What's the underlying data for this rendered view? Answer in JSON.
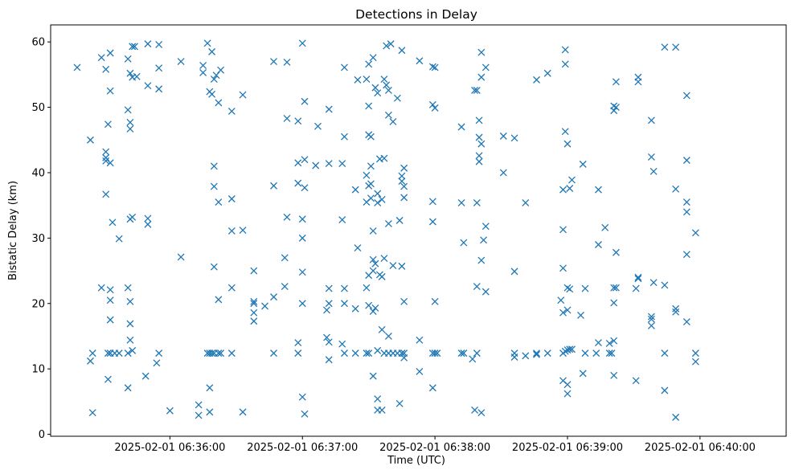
{
  "chart_data": {
    "type": "scatter",
    "title": "Detections in Delay",
    "xlabel": "Time (UTC)",
    "ylabel": "Bistatic Delay (km)",
    "x_unit": "time",
    "x_range": [
      "2025-02-01 06:35:06",
      "2025-02-01 06:40:39"
    ],
    "ylim": [
      -0.3,
      62.6
    ],
    "x_ticks": [
      "2025-02-01 06:36:00",
      "2025-02-01 06:37:00",
      "2025-02-01 06:38:00",
      "2025-02-01 06:39:00",
      "2025-02-01 06:40:00"
    ],
    "y_ticks": [
      0,
      10,
      20,
      30,
      40,
      50,
      60
    ],
    "marker": "x",
    "marker_color": "#1f77b4",
    "grid": false,
    "legend": "none",
    "points": [
      [
        "06:35:18",
        56.1
      ],
      [
        "06:35:24",
        45.0
      ],
      [
        "06:35:24",
        11.2
      ],
      [
        "06:35:25",
        12.4
      ],
      [
        "06:35:25",
        3.3
      ],
      [
        "06:35:29",
        57.6
      ],
      [
        "06:35:29",
        22.4
      ],
      [
        "06:35:31",
        55.8
      ],
      [
        "06:35:31",
        42.3
      ],
      [
        "06:35:31",
        43.2
      ],
      [
        "06:35:31",
        41.8
      ],
      [
        "06:35:31",
        36.7
      ],
      [
        "06:35:32",
        47.4
      ],
      [
        "06:35:32",
        12.4
      ],
      [
        "06:35:32",
        8.4
      ],
      [
        "06:35:33",
        58.3
      ],
      [
        "06:35:33",
        52.5
      ],
      [
        "06:35:33",
        41.5
      ],
      [
        "06:35:33",
        22.1
      ],
      [
        "06:35:33",
        20.5
      ],
      [
        "06:35:33",
        17.5
      ],
      [
        "06:35:33",
        12.4
      ],
      [
        "06:35:34",
        32.4
      ],
      [
        "06:35:35",
        12.4
      ],
      [
        "06:35:37",
        12.4
      ],
      [
        "06:35:37",
        29.9
      ],
      [
        "06:35:41",
        57.4
      ],
      [
        "06:35:41",
        49.6
      ],
      [
        "06:35:41",
        22.4
      ],
      [
        "06:35:41",
        12.4
      ],
      [
        "06:35:41",
        7.1
      ],
      [
        "06:35:42",
        55.2
      ],
      [
        "06:35:42",
        47.7
      ],
      [
        "06:35:42",
        46.7
      ],
      [
        "06:35:42",
        32.9
      ],
      [
        "06:35:42",
        20.3
      ],
      [
        "06:35:42",
        16.9
      ],
      [
        "06:35:42",
        14.4
      ],
      [
        "06:35:43",
        59.3
      ],
      [
        "06:35:43",
        54.6
      ],
      [
        "06:35:43",
        33.2
      ],
      [
        "06:35:43",
        12.8
      ],
      [
        "06:35:44",
        59.3
      ],
      [
        "06:35:45",
        54.7
      ],
      [
        "06:35:50",
        59.7
      ],
      [
        "06:35:50",
        53.3
      ],
      [
        "06:35:50",
        33.0
      ],
      [
        "06:35:50",
        32.1
      ],
      [
        "06:35:49",
        8.9
      ],
      [
        "06:35:55",
        59.6
      ],
      [
        "06:35:55",
        56.0
      ],
      [
        "06:35:55",
        52.8
      ],
      [
        "06:35:55",
        12.4
      ],
      [
        "06:35:54",
        10.9
      ],
      [
        "06:36:00",
        3.6
      ],
      [
        "06:36:05",
        57.0
      ],
      [
        "06:36:05",
        27.1
      ],
      [
        "06:36:13",
        4.5
      ],
      [
        "06:36:13",
        2.9
      ],
      [
        "06:36:15",
        56.4
      ],
      [
        "06:36:15",
        55.3
      ],
      [
        "06:36:17",
        59.8
      ],
      [
        "06:36:17",
        12.4
      ],
      [
        "06:36:18",
        52.4
      ],
      [
        "06:36:18",
        12.4
      ],
      [
        "06:36:18",
        7.1
      ],
      [
        "06:36:18",
        3.4
      ],
      [
        "06:36:19",
        58.5
      ],
      [
        "06:36:19",
        52.0
      ],
      [
        "06:36:19",
        12.4
      ],
      [
        "06:36:20",
        54.3
      ],
      [
        "06:36:20",
        41.0
      ],
      [
        "06:36:20",
        37.9
      ],
      [
        "06:36:20",
        25.6
      ],
      [
        "06:36:20",
        12.4
      ],
      [
        "06:36:21",
        54.9
      ],
      [
        "06:36:22",
        50.7
      ],
      [
        "06:36:22",
        35.5
      ],
      [
        "06:36:22",
        20.6
      ],
      [
        "06:36:22",
        12.4
      ],
      [
        "06:36:23",
        55.7
      ],
      [
        "06:36:23",
        12.4
      ],
      [
        "06:36:28",
        49.4
      ],
      [
        "06:36:28",
        36.0
      ],
      [
        "06:36:28",
        31.1
      ],
      [
        "06:36:28",
        22.4
      ],
      [
        "06:36:28",
        12.4
      ],
      [
        "06:36:33",
        51.9
      ],
      [
        "06:36:33",
        31.2
      ],
      [
        "06:36:33",
        3.4
      ],
      [
        "06:36:38",
        25.0
      ],
      [
        "06:36:38",
        20.3
      ],
      [
        "06:36:38",
        20.0
      ],
      [
        "06:36:38",
        18.6
      ],
      [
        "06:36:38",
        17.3
      ],
      [
        "06:36:43",
        19.6
      ],
      [
        "06:36:47",
        57.0
      ],
      [
        "06:36:47",
        38.0
      ],
      [
        "06:36:47",
        21.0
      ],
      [
        "06:36:47",
        12.4
      ],
      [
        "06:36:53",
        56.9
      ],
      [
        "06:36:53",
        48.3
      ],
      [
        "06:36:53",
        33.2
      ],
      [
        "06:36:52",
        27.0
      ],
      [
        "06:36:52",
        22.6
      ],
      [
        "06:36:58",
        47.9
      ],
      [
        "06:36:58",
        41.5
      ],
      [
        "06:36:58",
        38.4
      ],
      [
        "06:36:58",
        14.0
      ],
      [
        "06:36:58",
        12.4
      ],
      [
        "06:37:00",
        59.8
      ],
      [
        "06:37:00",
        32.9
      ],
      [
        "06:37:00",
        30.0
      ],
      [
        "06:37:00",
        24.8
      ],
      [
        "06:37:00",
        20.0
      ],
      [
        "06:37:00",
        5.7
      ],
      [
        "06:37:01",
        50.9
      ],
      [
        "06:37:01",
        42.0
      ],
      [
        "06:37:01",
        37.7
      ],
      [
        "06:37:01",
        3.1
      ],
      [
        "06:37:06",
        41.1
      ],
      [
        "06:37:07",
        47.1
      ],
      [
        "06:37:12",
        49.7
      ],
      [
        "06:37:12",
        41.4
      ],
      [
        "06:37:11",
        19.0
      ],
      [
        "06:37:11",
        14.8
      ],
      [
        "06:37:12",
        22.3
      ],
      [
        "06:37:12",
        20.0
      ],
      [
        "06:37:12",
        14.1
      ],
      [
        "06:37:12",
        11.4
      ],
      [
        "06:37:18",
        41.4
      ],
      [
        "06:37:18",
        32.8
      ],
      [
        "06:37:18",
        13.8
      ],
      [
        "06:37:19",
        56.1
      ],
      [
        "06:37:19",
        45.5
      ],
      [
        "06:37:19",
        22.3
      ],
      [
        "06:37:19",
        20.0
      ],
      [
        "06:37:19",
        12.4
      ],
      [
        "06:37:24",
        37.4
      ],
      [
        "06:37:25",
        28.5
      ],
      [
        "06:37:24",
        19.2
      ],
      [
        "06:37:24",
        12.4
      ],
      [
        "06:37:25",
        54.2
      ],
      [
        "06:37:29",
        54.3
      ],
      [
        "06:37:29",
        39.6
      ],
      [
        "06:37:29",
        35.5
      ],
      [
        "06:37:29",
        22.4
      ],
      [
        "06:37:29",
        12.4
      ],
      [
        "06:37:30",
        56.6
      ],
      [
        "06:37:30",
        50.2
      ],
      [
        "06:37:30",
        45.8
      ],
      [
        "06:37:30",
        38.0
      ],
      [
        "06:37:30",
        24.3
      ],
      [
        "06:37:30",
        19.7
      ],
      [
        "06:37:30",
        12.4
      ],
      [
        "06:37:31",
        45.5
      ],
      [
        "06:37:31",
        41.0
      ],
      [
        "06:37:31",
        38.3
      ],
      [
        "06:37:31",
        36.1
      ],
      [
        "06:37:32",
        57.6
      ],
      [
        "06:37:32",
        31.1
      ],
      [
        "06:37:32",
        26.7
      ],
      [
        "06:37:32",
        25.0
      ],
      [
        "06:37:32",
        18.8
      ],
      [
        "06:37:32",
        8.9
      ],
      [
        "06:37:33",
        53.0
      ],
      [
        "06:37:33",
        26.1
      ],
      [
        "06:37:33",
        19.3
      ],
      [
        "06:37:34",
        52.2
      ],
      [
        "06:37:34",
        35.4
      ],
      [
        "06:37:34",
        36.8
      ],
      [
        "06:37:34",
        12.8
      ],
      [
        "06:37:34",
        5.4
      ],
      [
        "06:37:34",
        3.7
      ],
      [
        "06:37:35",
        42.1
      ],
      [
        "06:37:35",
        24.4
      ],
      [
        "06:37:36",
        35.9
      ],
      [
        "06:37:36",
        24.1
      ],
      [
        "06:37:36",
        16.0
      ],
      [
        "06:37:36",
        3.7
      ],
      [
        "06:37:37",
        54.3
      ],
      [
        "06:37:37",
        42.2
      ],
      [
        "06:37:37",
        26.9
      ],
      [
        "06:37:37",
        12.4
      ],
      [
        "06:37:38",
        59.4
      ],
      [
        "06:37:38",
        53.4
      ],
      [
        "06:37:39",
        52.6
      ],
      [
        "06:37:39",
        48.8
      ],
      [
        "06:37:39",
        32.2
      ],
      [
        "06:37:39",
        15.0
      ],
      [
        "06:37:39",
        12.4
      ],
      [
        "06:37:40",
        59.7
      ],
      [
        "06:37:41",
        47.8
      ],
      [
        "06:37:41",
        25.8
      ],
      [
        "06:37:41",
        12.4
      ],
      [
        "06:37:43",
        51.4
      ],
      [
        "06:37:43",
        12.4
      ],
      [
        "06:37:44",
        32.7
      ],
      [
        "06:37:44",
        4.7
      ],
      [
        "06:37:45",
        58.7
      ],
      [
        "06:37:45",
        39.5
      ],
      [
        "06:37:45",
        38.7
      ],
      [
        "06:37:45",
        25.7
      ],
      [
        "06:37:45",
        12.4
      ],
      [
        "06:37:46",
        40.7
      ],
      [
        "06:37:46",
        37.9
      ],
      [
        "06:37:46",
        36.2
      ],
      [
        "06:37:46",
        20.3
      ],
      [
        "06:37:46",
        12.4
      ],
      [
        "06:37:46",
        11.7
      ],
      [
        "06:37:53",
        57.1
      ],
      [
        "06:37:53",
        14.4
      ],
      [
        "06:37:53",
        9.6
      ],
      [
        "06:37:59",
        56.2
      ],
      [
        "06:37:59",
        35.6
      ],
      [
        "06:37:59",
        32.5
      ],
      [
        "06:37:59",
        12.4
      ],
      [
        "06:37:59",
        7.1
      ],
      [
        "06:37:59",
        50.4
      ],
      [
        "06:38:00",
        56.1
      ],
      [
        "06:38:00",
        49.9
      ],
      [
        "06:38:00",
        20.3
      ],
      [
        "06:38:00",
        12.4
      ],
      [
        "06:38:01",
        12.4
      ],
      [
        "06:38:12",
        47.0
      ],
      [
        "06:38:12",
        35.4
      ],
      [
        "06:38:13",
        29.3
      ],
      [
        "06:38:12",
        12.4
      ],
      [
        "06:38:13",
        12.4
      ],
      [
        "06:38:18",
        52.6
      ],
      [
        "06:38:18",
        3.7
      ],
      [
        "06:38:17",
        11.5
      ],
      [
        "06:38:19",
        52.6
      ],
      [
        "06:38:19",
        35.4
      ],
      [
        "06:38:19",
        22.6
      ],
      [
        "06:38:19",
        12.4
      ],
      [
        "06:38:20",
        48.0
      ],
      [
        "06:38:20",
        45.4
      ],
      [
        "06:38:20",
        42.6
      ],
      [
        "06:38:20",
        41.7
      ],
      [
        "06:38:21",
        58.4
      ],
      [
        "06:38:21",
        54.6
      ],
      [
        "06:38:21",
        44.4
      ],
      [
        "06:38:21",
        26.6
      ],
      [
        "06:38:21",
        3.3
      ],
      [
        "06:38:22",
        29.7
      ],
      [
        "06:38:23",
        56.1
      ],
      [
        "06:38:23",
        31.8
      ],
      [
        "06:38:23",
        21.8
      ],
      [
        "06:38:31",
        45.6
      ],
      [
        "06:38:31",
        40.0
      ],
      [
        "06:38:36",
        45.3
      ],
      [
        "06:38:36",
        24.9
      ],
      [
        "06:38:36",
        12.4
      ],
      [
        "06:38:36",
        11.8
      ],
      [
        "06:38:41",
        35.4
      ],
      [
        "06:38:41",
        12.0
      ],
      [
        "06:38:46",
        54.2
      ],
      [
        "06:38:46",
        12.4
      ],
      [
        "06:38:46",
        12.2
      ],
      [
        "06:38:51",
        55.2
      ],
      [
        "06:38:51",
        12.4
      ],
      [
        "06:38:57",
        20.5
      ],
      [
        "06:38:58",
        37.4
      ],
      [
        "06:38:58",
        31.3
      ],
      [
        "06:38:58",
        25.4
      ],
      [
        "06:38:58",
        18.6
      ],
      [
        "06:38:58",
        12.4
      ],
      [
        "06:38:58",
        8.2
      ],
      [
        "06:38:59",
        58.8
      ],
      [
        "06:38:59",
        56.6
      ],
      [
        "06:38:59",
        46.3
      ],
      [
        "06:38:59",
        12.7
      ],
      [
        "06:39:00",
        44.4
      ],
      [
        "06:39:00",
        22.4
      ],
      [
        "06:39:00",
        19.0
      ],
      [
        "06:39:00",
        12.9
      ],
      [
        "06:39:00",
        7.6
      ],
      [
        "06:39:00",
        6.2
      ],
      [
        "06:39:01",
        37.6
      ],
      [
        "06:39:01",
        22.2
      ],
      [
        "06:39:01",
        13.0
      ],
      [
        "06:39:02",
        38.9
      ],
      [
        "06:39:02",
        13.0
      ],
      [
        "06:39:06",
        18.2
      ],
      [
        "06:39:07",
        9.3
      ],
      [
        "06:39:07",
        41.3
      ],
      [
        "06:39:08",
        22.3
      ],
      [
        "06:39:08",
        12.4
      ],
      [
        "06:39:13",
        12.4
      ],
      [
        "06:39:14",
        37.4
      ],
      [
        "06:39:14",
        29.0
      ],
      [
        "06:39:14",
        14.0
      ],
      [
        "06:39:17",
        31.6
      ],
      [
        "06:39:19",
        12.4
      ],
      [
        "06:39:19",
        13.9
      ],
      [
        "06:39:20",
        12.4
      ],
      [
        "06:39:21",
        50.2
      ],
      [
        "06:39:21",
        49.5
      ],
      [
        "06:39:21",
        22.4
      ],
      [
        "06:39:21",
        20.1
      ],
      [
        "06:39:21",
        14.3
      ],
      [
        "06:39:21",
        9.0
      ],
      [
        "06:39:22",
        53.9
      ],
      [
        "06:39:22",
        50.0
      ],
      [
        "06:39:22",
        27.8
      ],
      [
        "06:39:22",
        22.4
      ],
      [
        "06:39:31",
        22.3
      ],
      [
        "06:39:31",
        8.2
      ],
      [
        "06:39:32",
        54.6
      ],
      [
        "06:39:32",
        53.9
      ],
      [
        "06:39:32",
        24.0
      ],
      [
        "06:39:32",
        23.8
      ],
      [
        "06:39:38",
        48.0
      ],
      [
        "06:39:38",
        42.4
      ],
      [
        "06:39:38",
        18.0
      ],
      [
        "06:39:38",
        17.6
      ],
      [
        "06:39:38",
        16.6
      ],
      [
        "06:39:39",
        40.2
      ],
      [
        "06:39:39",
        23.2
      ],
      [
        "06:39:44",
        59.2
      ],
      [
        "06:39:44",
        22.8
      ],
      [
        "06:39:44",
        12.4
      ],
      [
        "06:39:44",
        6.7
      ],
      [
        "06:39:49",
        59.2
      ],
      [
        "06:39:49",
        37.5
      ],
      [
        "06:39:49",
        19.2
      ],
      [
        "06:39:49",
        18.7
      ],
      [
        "06:39:49",
        2.6
      ],
      [
        "06:39:54",
        51.8
      ],
      [
        "06:39:54",
        41.9
      ],
      [
        "06:39:54",
        35.5
      ],
      [
        "06:39:54",
        34.0
      ],
      [
        "06:39:54",
        27.5
      ],
      [
        "06:39:54",
        17.2
      ],
      [
        "06:39:58",
        30.8
      ],
      [
        "06:39:58",
        12.4
      ],
      [
        "06:39:58",
        11.1
      ]
    ]
  }
}
